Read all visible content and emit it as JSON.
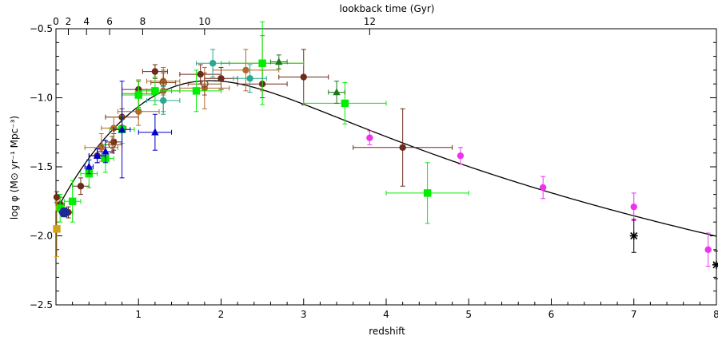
{
  "chart_data": {
    "type": "scatter",
    "xlabel": "redshift",
    "ylabel": "log φ (M⊙ yr⁻¹ Mpc⁻³)",
    "top_xlabel": "lookback time (Gyr)",
    "xlim": [
      0,
      8
    ],
    "ylim": [
      -2.5,
      -0.5
    ],
    "x_ticks": [
      1,
      2,
      3,
      4,
      5,
      6,
      7,
      8
    ],
    "y_ticks": [
      -2.5,
      -2.0,
      -1.5,
      -1.0,
      -0.5
    ],
    "y_tick_labels": [
      "−2.5",
      "−2.0",
      "−1.5",
      "−1.0",
      "−0.5"
    ],
    "top_ticks": [
      {
        "z": 0.0,
        "label": "0"
      },
      {
        "z": 0.15,
        "label": "2"
      },
      {
        "z": 0.37,
        "label": "4"
      },
      {
        "z": 0.65,
        "label": "6"
      },
      {
        "z": 1.05,
        "label": "8"
      },
      {
        "z": 1.8,
        "label": "10"
      },
      {
        "z": 3.8,
        "label": "12"
      }
    ],
    "fit_curve": {
      "color": "#000000",
      "model": "madau_dickinson_2014"
    },
    "series": [
      {
        "marker": "circle",
        "color": "#6b2a1a",
        "points": [
          {
            "x": 0.01,
            "y": -1.72,
            "xerr": 0.01,
            "yerr": 0.04
          },
          {
            "x": 0.05,
            "y": -1.77,
            "xerr": 0.05,
            "yerr": 0.05
          },
          {
            "x": 0.3,
            "y": -1.64,
            "xerr": 0.1,
            "yerr": 0.06
          },
          {
            "x": 0.5,
            "y": -1.42,
            "xerr": 0.1,
            "yerr": 0.05
          },
          {
            "x": 0.7,
            "y": -1.32,
            "xerr": 0.1,
            "yerr": 0.06
          },
          {
            "x": 0.8,
            "y": -1.14,
            "xerr": 0.2,
            "yerr": 0.06
          },
          {
            "x": 1.0,
            "y": -0.94,
            "xerr": 0.2,
            "yerr": 0.06
          },
          {
            "x": 1.2,
            "y": -0.81,
            "xerr": 0.15,
            "yerr": 0.05
          },
          {
            "x": 1.75,
            "y": -0.83,
            "xerr": 0.25,
            "yerr": 0.07
          },
          {
            "x": 2.0,
            "y": -0.86,
            "xerr": 0.2,
            "yerr": 0.08
          },
          {
            "x": 2.5,
            "y": -0.9,
            "xerr": 0.3,
            "yerr": 0.1
          },
          {
            "x": 3.0,
            "y": -0.85,
            "xerr": 0.3,
            "yerr": 0.2
          },
          {
            "x": 4.2,
            "y": -1.36,
            "xerr": 0.6,
            "yerr": 0.28
          },
          {
            "x": 0.15,
            "y": -1.83,
            "xerr": 0.05,
            "yerr": 0.04
          }
        ]
      },
      {
        "marker": "circle",
        "color": "#b06a2a",
        "points": [
          {
            "x": 0.55,
            "y": -1.36,
            "xerr": 0.2,
            "yerr": 0.1
          },
          {
            "x": 0.7,
            "y": -1.22,
            "xerr": 0.15,
            "yerr": 0.08
          },
          {
            "x": 1.0,
            "y": -1.1,
            "xerr": 0.25,
            "yerr": 0.1
          },
          {
            "x": 1.3,
            "y": -0.95,
            "xerr": 0.2,
            "yerr": 0.15
          },
          {
            "x": 1.8,
            "y": -0.93,
            "xerr": 0.3,
            "yerr": 0.15
          },
          {
            "x": 2.3,
            "y": -0.8,
            "xerr": 0.4,
            "yerr": 0.15
          },
          {
            "x": 2.5,
            "y": -0.75,
            "xerr": 0.5,
            "yerr": 0.2
          },
          {
            "x": 1.3,
            "y": -0.88,
            "xerr": 0.2,
            "yerr": 0.1
          },
          {
            "x": 1.0,
            "y": -0.97,
            "xerr": 0.2,
            "yerr": 0.1
          }
        ]
      },
      {
        "marker": "open-circle",
        "color": "#8a4a20",
        "points": [
          {
            "x": 0.68,
            "y": -1.34,
            "xerr": 0.12,
            "yerr": 0.06
          },
          {
            "x": 1.3,
            "y": -0.89,
            "xerr": 0.15,
            "yerr": 0.07
          },
          {
            "x": 1.8,
            "y": -0.9,
            "xerr": 0.2,
            "yerr": 0.08
          }
        ]
      },
      {
        "marker": "square",
        "color": "#00ee00",
        "points": [
          {
            "x": 0.05,
            "y": -1.8,
            "xerr": 0.05,
            "yerr": 0.1
          },
          {
            "x": 0.2,
            "y": -1.75,
            "xerr": 0.1,
            "yerr": 0.15
          },
          {
            "x": 0.4,
            "y": -1.55,
            "xerr": 0.1,
            "yerr": 0.1
          },
          {
            "x": 0.6,
            "y": -1.44,
            "xerr": 0.1,
            "yerr": 0.1
          },
          {
            "x": 0.8,
            "y": -1.23,
            "xerr": 0.15,
            "yerr": 0.1
          },
          {
            "x": 1.0,
            "y": -0.98,
            "xerr": 0.2,
            "yerr": 0.1
          },
          {
            "x": 1.2,
            "y": -0.95,
            "xerr": 0.2,
            "yerr": 0.1
          },
          {
            "x": 1.7,
            "y": -0.95,
            "xerr": 0.3,
            "yerr": 0.15
          },
          {
            "x": 2.5,
            "y": -0.75,
            "xerr": 0.5,
            "yerr": 0.3
          },
          {
            "x": 3.5,
            "y": -1.04,
            "xerr": 0.5,
            "yerr": 0.15
          },
          {
            "x": 4.5,
            "y": -1.69,
            "xerr": 0.5,
            "yerr": 0.22
          }
        ]
      },
      {
        "marker": "triangle",
        "color": "#1a7a1a",
        "points": [
          {
            "x": 2.7,
            "y": -0.74,
            "xerr": 0.1,
            "yerr": 0.05
          },
          {
            "x": 3.4,
            "y": -0.96,
            "xerr": 0.1,
            "yerr": 0.08
          }
        ]
      },
      {
        "marker": "triangle",
        "color": "#0000cc",
        "points": [
          {
            "x": 0.4,
            "y": -1.5,
            "xerr": 0.05,
            "yerr": 0.05
          },
          {
            "x": 0.5,
            "y": -1.42,
            "xerr": 0.1,
            "yerr": 0.05
          },
          {
            "x": 0.6,
            "y": -1.39,
            "xerr": 0.1,
            "yerr": 0.08
          },
          {
            "x": 0.8,
            "y": -1.23,
            "xerr": 0.1,
            "yerr": 0.35
          },
          {
            "x": 1.2,
            "y": -1.25,
            "xerr": 0.2,
            "yerr": 0.13
          }
        ]
      },
      {
        "marker": "circle",
        "color": "#2aa890",
        "points": [
          {
            "x": 1.3,
            "y": -1.02,
            "xerr": 0.2,
            "yerr": 0.1
          },
          {
            "x": 1.9,
            "y": -0.75,
            "xerr": 0.2,
            "yerr": 0.1
          },
          {
            "x": 2.35,
            "y": -0.86,
            "xerr": 0.2,
            "yerr": 0.1
          }
        ]
      },
      {
        "marker": "circle",
        "color": "#ee33ee",
        "points": [
          {
            "x": 3.8,
            "y": -1.29,
            "xerr": 0,
            "yerr": 0.05
          },
          {
            "x": 4.9,
            "y": -1.42,
            "xerr": 0,
            "yerr": 0.06
          },
          {
            "x": 5.9,
            "y": -1.65,
            "xerr": 0,
            "yerr": 0.08
          },
          {
            "x": 7.0,
            "y": -1.79,
            "xerr": 0,
            "yerr": 0.1
          },
          {
            "x": 7.9,
            "y": -2.1,
            "xerr": 0,
            "yerr": 0.12
          }
        ]
      },
      {
        "marker": "star",
        "color": "#000000",
        "points": [
          {
            "x": 7.0,
            "y": -2.0,
            "xerr": 0,
            "yerr": 0.12
          },
          {
            "x": 8.0,
            "y": -2.21,
            "xerr": 0,
            "yerr": 0.1
          }
        ]
      },
      {
        "marker": "square",
        "color": "#d4a017",
        "points": [
          {
            "x": 0.01,
            "y": -1.95,
            "xerr": 0,
            "yerr": 0.2
          }
        ]
      },
      {
        "marker": "hexagon",
        "color": "#1a2a99",
        "points": [
          {
            "x": 0.1,
            "y": -1.83,
            "xerr": 0,
            "yerr": 0
          }
        ]
      }
    ]
  }
}
